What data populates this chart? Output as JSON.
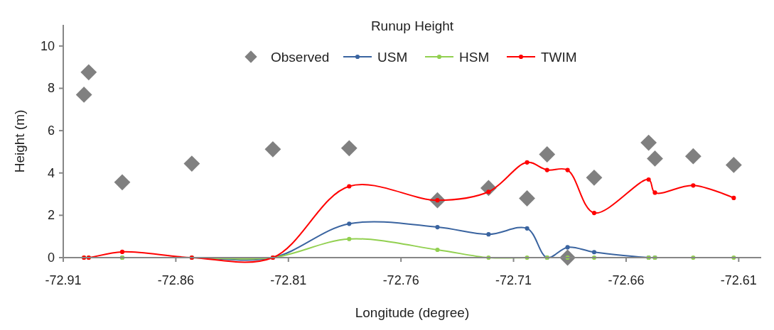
{
  "chart_data": {
    "type": "line",
    "title": "Runup Height",
    "xlabel": "Longitude (degree)",
    "ylabel": "Height (m)",
    "x": [
      -72.9008,
      -72.8987,
      -72.8838,
      -72.8529,
      -72.8169,
      -72.783,
      -72.7438,
      -72.7211,
      -72.704,
      -72.6951,
      -72.686,
      -72.6742,
      -72.65,
      -72.6472,
      -72.6302,
      -72.6122
    ],
    "series": [
      {
        "name": "Observed",
        "type": "scatter",
        "marker": "diamond",
        "color": "#808080",
        "values": [
          7.7,
          8.76,
          3.56,
          4.44,
          5.12,
          5.17,
          2.71,
          3.29,
          2.8,
          4.88,
          0,
          3.78,
          5.43,
          4.68,
          4.79,
          4.38
        ]
      },
      {
        "name": "USM",
        "color": "#3a64a0",
        "values": [
          null,
          null,
          0,
          0,
          0,
          1.6,
          1.44,
          1.1,
          1.38,
          0,
          0.49,
          0.26,
          0,
          0,
          null,
          null
        ]
      },
      {
        "name": "HSM",
        "color": "#92d050",
        "values": [
          0,
          0,
          0,
          0,
          0,
          0.88,
          0.37,
          0,
          0,
          0,
          0,
          0,
          0,
          0,
          0,
          0
        ]
      },
      {
        "name": "TWIM",
        "color": "#ff0000",
        "values": [
          0,
          0,
          0.27,
          0,
          0,
          3.37,
          2.71,
          3.11,
          4.5,
          4.14,
          4.14,
          2.11,
          3.69,
          3.07,
          3.41,
          2.82
        ]
      }
    ],
    "xlim": [
      -72.91,
      -72.6
    ],
    "xticks": [
      -72.91,
      -72.86,
      -72.81,
      -72.76,
      -72.71,
      -72.66,
      -72.61
    ],
    "ylim": [
      0,
      11
    ],
    "yticks": [
      0,
      2,
      4,
      6,
      8,
      10
    ],
    "grid": false,
    "legend": "top",
    "marker": "circle",
    "line_style": "solid"
  }
}
